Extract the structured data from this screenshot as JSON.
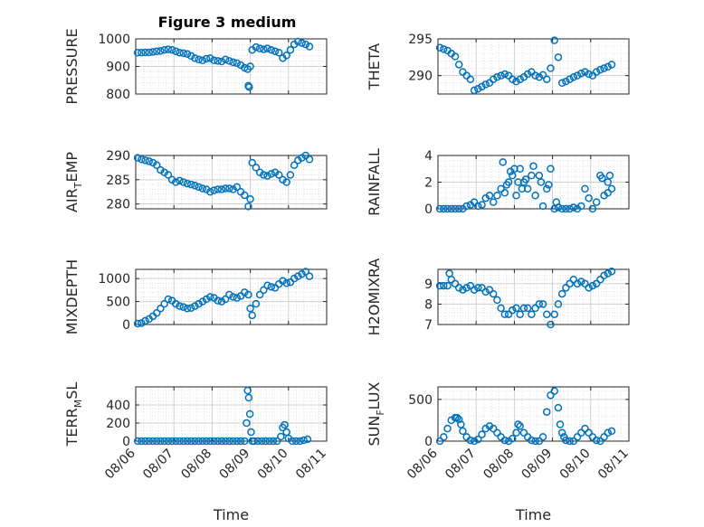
{
  "chart_data": {
    "type": "scatter",
    "title": "Figure 3 medium",
    "marker_color": "#0072BD",
    "grid": true,
    "x_tick_labels": [
      "08/06",
      "08/07",
      "08/08",
      "08/09",
      "08/10",
      "08/11"
    ],
    "xlabel": "Time",
    "xlim": [
      0,
      5
    ],
    "panels": [
      {
        "id": "pressure",
        "ylabel": "PRESSURE",
        "ylim": [
          800,
          1000
        ],
        "yticks": [
          800,
          900,
          1000
        ],
        "x": [
          0.05,
          0.15,
          0.25,
          0.35,
          0.45,
          0.55,
          0.65,
          0.75,
          0.85,
          0.95,
          1.05,
          1.15,
          1.25,
          1.35,
          1.45,
          1.55,
          1.65,
          1.75,
          1.85,
          1.95,
          2.05,
          2.15,
          2.25,
          2.35,
          2.45,
          2.55,
          2.65,
          2.75,
          2.85,
          2.93,
          2.95,
          2.97,
          3.0,
          3.05,
          3.15,
          3.25,
          3.35,
          3.45,
          3.55,
          3.65,
          3.75,
          3.85,
          3.95,
          4.05,
          4.15,
          4.25,
          4.35,
          4.45,
          4.55
        ],
        "values": [
          950,
          950,
          951,
          951,
          953,
          955,
          956,
          960,
          962,
          960,
          955,
          950,
          948,
          945,
          938,
          930,
          925,
          922,
          928,
          930,
          922,
          920,
          918,
          925,
          920,
          915,
          912,
          905,
          895,
          890,
          830,
          825,
          900,
          960,
          970,
          965,
          962,
          965,
          960,
          955,
          950,
          930,
          940,
          960,
          980,
          990,
          985,
          980,
          972
        ]
      },
      {
        "id": "theta",
        "ylabel": "THETA",
        "ylim": [
          287.5,
          295
        ],
        "yticks": [
          290,
          295
        ],
        "x": [
          0.05,
          0.15,
          0.25,
          0.35,
          0.45,
          0.55,
          0.65,
          0.75,
          0.85,
          0.95,
          1.05,
          1.15,
          1.25,
          1.35,
          1.45,
          1.55,
          1.65,
          1.75,
          1.85,
          1.95,
          2.05,
          2.15,
          2.25,
          2.35,
          2.45,
          2.55,
          2.65,
          2.75,
          2.85,
          2.95,
          3.05,
          3.15,
          3.25,
          3.35,
          3.45,
          3.55,
          3.65,
          3.75,
          3.85,
          3.95,
          4.05,
          4.15,
          4.25,
          4.35,
          4.45,
          4.55
        ],
        "values": [
          293.8,
          293.6,
          293.4,
          293.0,
          292.6,
          291.5,
          290.5,
          290.0,
          289.5,
          288.0,
          288.2,
          288.5,
          288.8,
          289.0,
          289.5,
          289.8,
          290.0,
          290.2,
          290.0,
          289.5,
          289.2,
          289.5,
          289.8,
          290.2,
          290.5,
          290.0,
          289.8,
          290.1,
          289.5,
          291.0,
          294.8,
          292.5,
          289.0,
          289.2,
          289.5,
          289.8,
          290.0,
          290.3,
          290.5,
          290.2,
          290.0,
          290.5,
          290.8,
          291.0,
          291.2,
          291.5
        ]
      },
      {
        "id": "air_temp",
        "ylabel_main": "AIR",
        "ylabel_sub": "T",
        "ylabel_tail": "EMP",
        "ylim": [
          279,
          290
        ],
        "yticks": [
          280,
          285,
          290
        ],
        "x": [
          0.05,
          0.15,
          0.25,
          0.35,
          0.45,
          0.55,
          0.65,
          0.75,
          0.85,
          0.95,
          1.05,
          1.15,
          1.25,
          1.35,
          1.45,
          1.55,
          1.65,
          1.75,
          1.85,
          1.95,
          2.05,
          2.15,
          2.25,
          2.35,
          2.45,
          2.55,
          2.65,
          2.75,
          2.85,
          2.95,
          3.0,
          3.05,
          3.15,
          3.25,
          3.35,
          3.45,
          3.55,
          3.65,
          3.75,
          3.85,
          3.95,
          4.05,
          4.15,
          4.25,
          4.35,
          4.45,
          4.55
        ],
        "values": [
          289.5,
          289.2,
          289.0,
          288.8,
          288.5,
          288.0,
          287.0,
          286.5,
          286.0,
          285.0,
          284.5,
          284.8,
          284.5,
          284.2,
          284.0,
          283.8,
          283.5,
          283.2,
          283.0,
          282.5,
          282.8,
          283.0,
          283.0,
          283.2,
          283.2,
          283.0,
          283.5,
          282.5,
          281.8,
          279.5,
          281.0,
          288.5,
          287.5,
          286.5,
          286.0,
          285.8,
          286.2,
          286.5,
          286.0,
          285.0,
          284.5,
          286.0,
          288.0,
          289.0,
          289.5,
          290.0,
          289.2
        ]
      },
      {
        "id": "rainfall",
        "ylabel": "RAINFALL",
        "ylim": [
          0,
          4
        ],
        "yticks": [
          0,
          2,
          4
        ],
        "x": [
          0.05,
          0.15,
          0.25,
          0.35,
          0.45,
          0.55,
          0.65,
          0.75,
          0.85,
          0.95,
          1.05,
          1.15,
          1.25,
          1.35,
          1.45,
          1.55,
          1.65,
          1.75,
          1.85,
          1.95,
          2.05,
          2.15,
          2.25,
          2.35,
          2.45,
          2.55,
          2.65,
          2.75,
          2.85,
          2.95,
          3.05,
          3.15,
          3.25,
          3.35,
          3.45,
          3.55,
          3.65,
          3.75,
          3.85,
          3.95,
          4.05,
          4.15,
          4.25,
          4.35,
          4.45,
          4.55,
          1.7,
          1.8,
          1.9,
          2.0,
          2.1,
          2.2,
          2.3,
          2.5,
          2.7,
          2.9,
          3.1,
          4.3,
          4.5,
          4.45
        ],
        "values": [
          0,
          0,
          0,
          0,
          0,
          0,
          0,
          0.2,
          0.3,
          0.5,
          0.2,
          0.3,
          0.8,
          1.0,
          0.5,
          1.0,
          1.5,
          1.2,
          2.0,
          2.5,
          1.0,
          3.0,
          2.0,
          1.5,
          2.5,
          1.0,
          2.5,
          0.2,
          1.5,
          3.0,
          0,
          0.1,
          0,
          0,
          0,
          0.1,
          0,
          0.2,
          1.5,
          0.8,
          0,
          0.5,
          2.5,
          1.0,
          2.0,
          1.5,
          3.5,
          1.8,
          2.8,
          3.0,
          2.0,
          1.5,
          2.2,
          3.2,
          2.0,
          1.8,
          0.5,
          2.3,
          2.5,
          1.2
        ]
      },
      {
        "id": "mixdepth",
        "ylabel": "MIXDEPTH",
        "ylim": [
          0,
          1200
        ],
        "yticks": [
          0,
          500,
          1000
        ],
        "x": [
          0.05,
          0.15,
          0.25,
          0.35,
          0.45,
          0.55,
          0.65,
          0.75,
          0.85,
          0.95,
          1.05,
          1.15,
          1.25,
          1.35,
          1.45,
          1.55,
          1.65,
          1.75,
          1.85,
          1.95,
          2.05,
          2.15,
          2.25,
          2.35,
          2.45,
          2.55,
          2.65,
          2.75,
          2.85,
          2.95,
          3.0,
          3.05,
          3.15,
          3.25,
          3.35,
          3.45,
          3.55,
          3.65,
          3.75,
          3.85,
          3.95,
          4.05,
          4.15,
          4.25,
          4.35,
          4.45,
          4.55
        ],
        "values": [
          20,
          30,
          80,
          120,
          180,
          250,
          350,
          450,
          550,
          520,
          450,
          400,
          380,
          350,
          360,
          400,
          450,
          500,
          550,
          600,
          580,
          520,
          500,
          550,
          650,
          600,
          580,
          620,
          700,
          650,
          350,
          200,
          450,
          650,
          750,
          850,
          820,
          800,
          880,
          950,
          900,
          920,
          1000,
          1050,
          1100,
          1150,
          1050
        ]
      },
      {
        "id": "h2omixra",
        "ylabel": "H2OMIXRA",
        "ylim": [
          7,
          9.7
        ],
        "yticks": [
          7,
          8,
          9
        ],
        "x": [
          0.05,
          0.15,
          0.25,
          0.3,
          0.35,
          0.45,
          0.55,
          0.65,
          0.75,
          0.85,
          0.95,
          1.05,
          1.15,
          1.25,
          1.35,
          1.45,
          1.55,
          1.65,
          1.75,
          1.85,
          1.95,
          2.05,
          2.15,
          2.25,
          2.35,
          2.45,
          2.55,
          2.65,
          2.75,
          2.85,
          2.95,
          3.05,
          3.15,
          3.25,
          3.35,
          3.45,
          3.55,
          3.65,
          3.75,
          3.85,
          3.95,
          4.05,
          4.15,
          4.25,
          4.35,
          4.45,
          4.55
        ],
        "values": [
          8.9,
          8.9,
          8.9,
          9.5,
          9.2,
          9.0,
          8.8,
          8.7,
          8.8,
          8.9,
          8.7,
          8.8,
          8.8,
          8.6,
          8.7,
          8.5,
          8.2,
          7.8,
          7.5,
          7.5,
          7.7,
          7.8,
          7.5,
          7.8,
          7.8,
          7.5,
          7.8,
          8.0,
          8.0,
          7.5,
          7.0,
          7.5,
          8.0,
          8.5,
          8.8,
          9.0,
          9.2,
          9.0,
          9.1,
          9.0,
          8.8,
          8.9,
          9.0,
          9.2,
          9.4,
          9.5,
          9.6
        ]
      },
      {
        "id": "terr_msl",
        "ylabel_main": "TERR",
        "ylabel_sub": "M",
        "ylabel_tail": "SL",
        "ylim": [
          0,
          600
        ],
        "yticks": [
          0,
          200,
          400
        ],
        "x": [
          0.05,
          0.15,
          0.25,
          0.35,
          0.45,
          0.55,
          0.65,
          0.75,
          0.85,
          0.95,
          1.05,
          1.15,
          1.25,
          1.35,
          1.45,
          1.55,
          1.65,
          1.75,
          1.85,
          1.95,
          2.05,
          2.15,
          2.25,
          2.35,
          2.45,
          2.55,
          2.65,
          2.75,
          2.85,
          2.9,
          2.93,
          2.96,
          2.99,
          3.02,
          3.05,
          3.1,
          3.2,
          3.3,
          3.4,
          3.5,
          3.6,
          3.7,
          3.8,
          3.85,
          3.9,
          3.95,
          4.0,
          4.1,
          4.2,
          4.3,
          4.4,
          4.5
        ],
        "values": [
          0,
          0,
          0,
          0,
          0,
          0,
          0,
          0,
          0,
          0,
          0,
          0,
          0,
          0,
          0,
          0,
          0,
          0,
          0,
          0,
          0,
          0,
          0,
          0,
          0,
          0,
          0,
          0,
          0,
          200,
          560,
          480,
          300,
          100,
          0,
          0,
          0,
          0,
          0,
          0,
          0,
          0,
          50,
          150,
          180,
          100,
          30,
          0,
          0,
          0,
          10,
          20
        ]
      },
      {
        "id": "sun_flux",
        "ylabel_main": "SUN",
        "ylabel_sub": "F",
        "ylabel_tail": "LUX",
        "ylim": [
          0,
          650
        ],
        "yticks": [
          0,
          500
        ],
        "x": [
          0.05,
          0.15,
          0.25,
          0.35,
          0.45,
          0.5,
          0.55,
          0.6,
          0.65,
          0.75,
          0.85,
          0.95,
          1.05,
          1.15,
          1.25,
          1.35,
          1.45,
          1.55,
          1.65,
          1.75,
          1.85,
          1.95,
          2.05,
          2.1,
          2.15,
          2.25,
          2.35,
          2.45,
          2.55,
          2.65,
          2.75,
          2.85,
          2.95,
          3.05,
          3.15,
          3.2,
          3.25,
          3.3,
          3.35,
          3.45,
          3.55,
          3.65,
          3.75,
          3.85,
          3.95,
          4.05,
          4.15,
          4.25,
          4.35,
          4.45,
          4.55
        ],
        "values": [
          0,
          50,
          150,
          250,
          280,
          280,
          260,
          200,
          120,
          50,
          10,
          0,
          20,
          80,
          150,
          180,
          150,
          100,
          50,
          10,
          0,
          30,
          100,
          200,
          180,
          100,
          50,
          10,
          0,
          0,
          50,
          350,
          550,
          600,
          400,
          200,
          100,
          50,
          10,
          0,
          0,
          50,
          100,
          150,
          100,
          50,
          10,
          0,
          50,
          100,
          120
        ]
      }
    ]
  }
}
